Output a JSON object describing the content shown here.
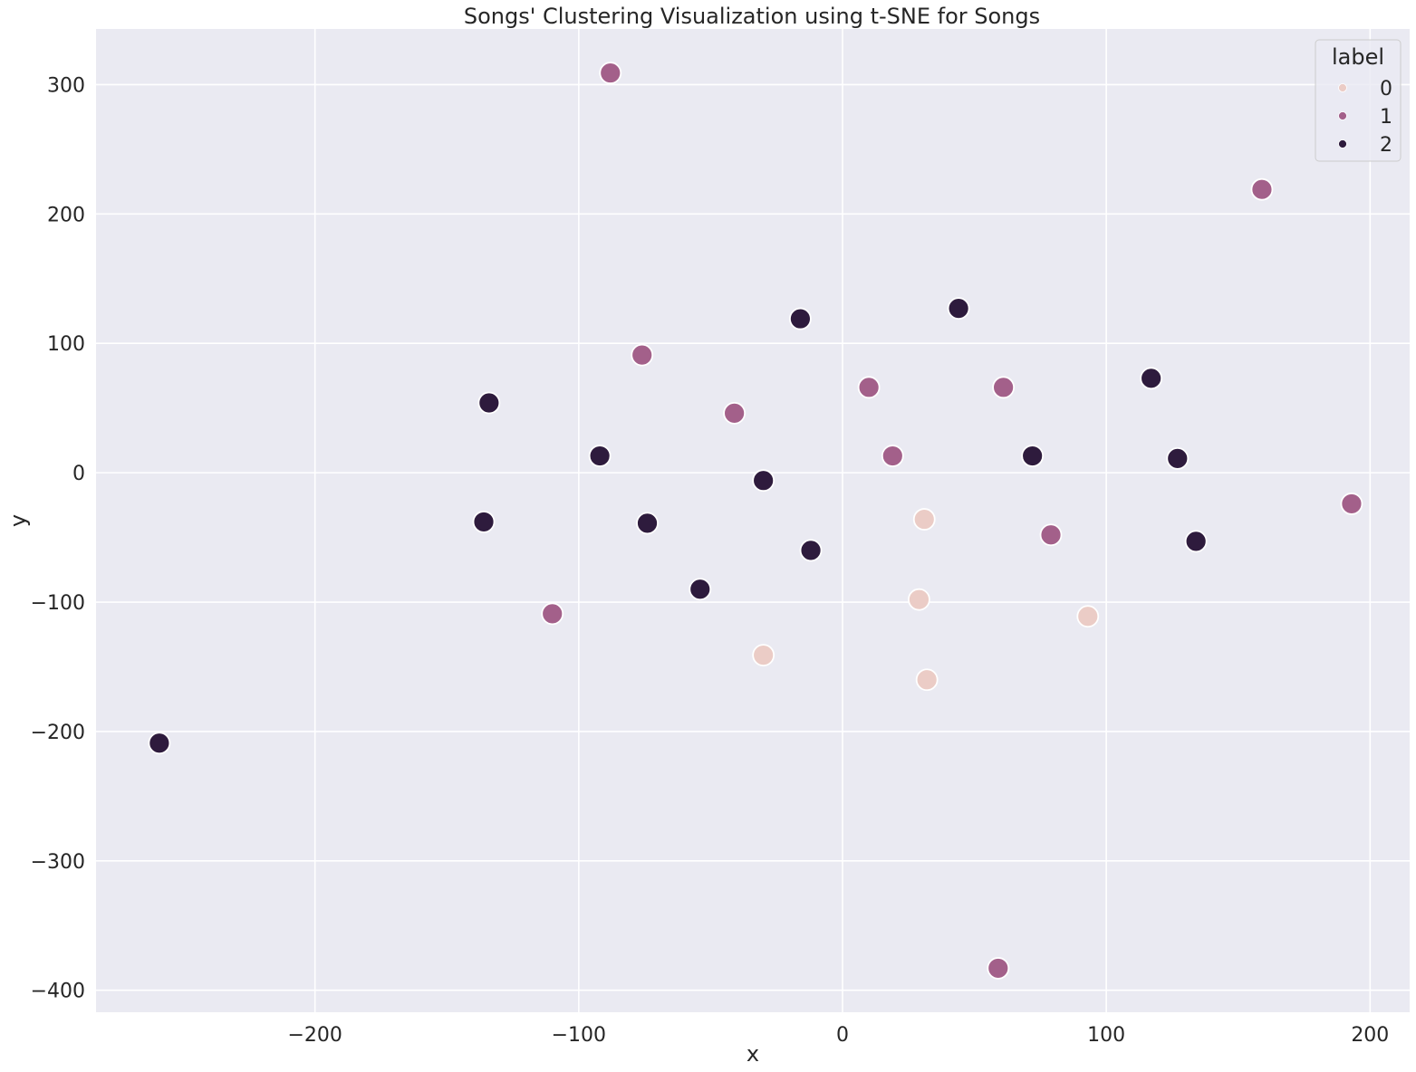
{
  "chart_data": {
    "type": "scatter",
    "title": "Songs' Clustering Visualization using t-SNE for Songs",
    "xlabel": "x",
    "ylabel": "y",
    "xlim": [
      -283,
      215
    ],
    "ylim": [
      -417,
      343
    ],
    "xticks": [
      -200,
      -100,
      0,
      100,
      200
    ],
    "yticks": [
      -400,
      -300,
      -200,
      -100,
      0,
      100,
      200,
      300
    ],
    "grid": true,
    "legend": {
      "title": "label",
      "placement": "top-right",
      "entries": [
        {
          "label": "0",
          "color": "#ebccc6"
        },
        {
          "label": "1",
          "color": "#a3608a"
        },
        {
          "label": "2",
          "color": "#2e1b3d"
        }
      ]
    },
    "series": [
      {
        "name": "0",
        "color": "#ebccc6",
        "points": [
          [
            31,
            -36
          ],
          [
            29,
            -98
          ],
          [
            93,
            -111
          ],
          [
            -30,
            -141
          ],
          [
            32,
            -160
          ]
        ]
      },
      {
        "name": "1",
        "color": "#a3608a",
        "points": [
          [
            -88,
            309
          ],
          [
            159,
            219
          ],
          [
            -76,
            91
          ],
          [
            -41,
            46
          ],
          [
            10,
            66
          ],
          [
            61,
            66
          ],
          [
            19,
            13
          ],
          [
            79,
            -48
          ],
          [
            193,
            -24
          ],
          [
            -110,
            -109
          ],
          [
            59,
            -383
          ]
        ]
      },
      {
        "name": "2",
        "color": "#2e1b3d",
        "points": [
          [
            -16,
            119
          ],
          [
            44,
            127
          ],
          [
            -134,
            54
          ],
          [
            117,
            73
          ],
          [
            -92,
            13
          ],
          [
            72,
            13
          ],
          [
            127,
            11
          ],
          [
            -30,
            -6
          ],
          [
            -136,
            -38
          ],
          [
            -74,
            -39
          ],
          [
            -12,
            -60
          ],
          [
            134,
            -53
          ],
          [
            -54,
            -90
          ],
          [
            -259,
            -209
          ]
        ]
      }
    ]
  }
}
